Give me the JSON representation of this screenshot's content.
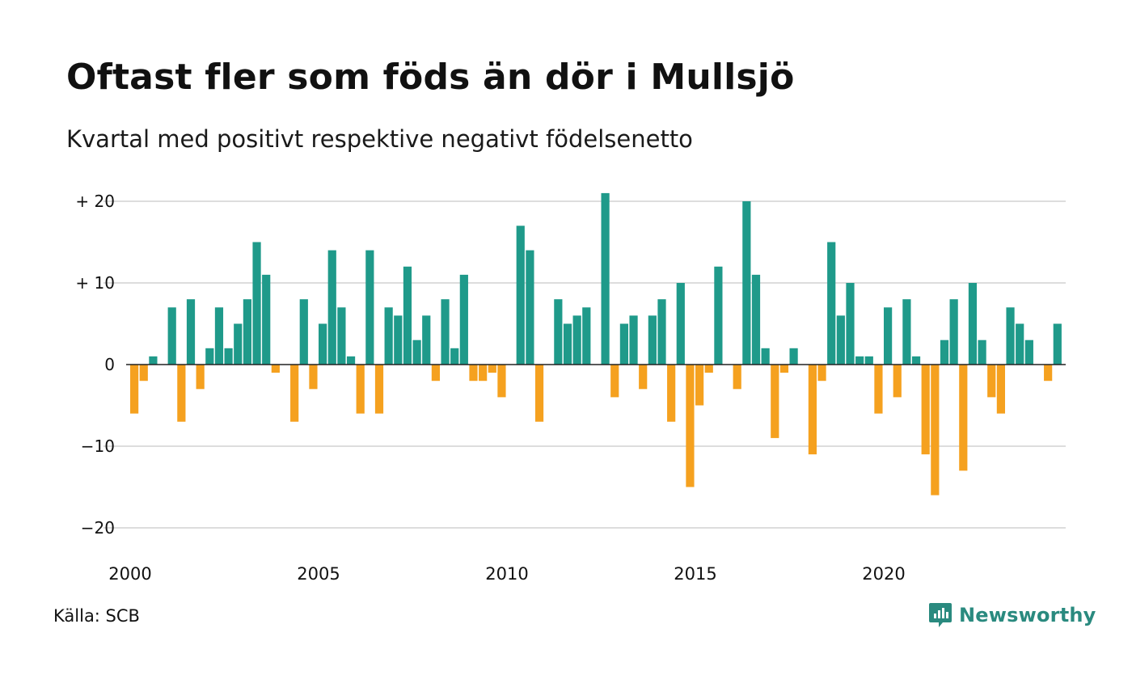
{
  "title": "Oftast fler som föds än dör i Mullsjö",
  "subtitle": "Kvartal med positivt respektive negativt födelsenetto",
  "source": "Källa: SCB",
  "brand": {
    "name": "Newsworthy",
    "icon": "newsworthy-logo-icon"
  },
  "colors": {
    "positive": "#1f9a8a",
    "negative": "#f5a11f",
    "grid": "#dddddd",
    "brand": "#2a8a7f"
  },
  "chart_data": {
    "type": "bar",
    "ylim": [
      -23,
      21
    ],
    "yticks": [
      {
        "value": 20,
        "label": "+ 20"
      },
      {
        "value": 10,
        "label": "+ 10"
      },
      {
        "value": 0,
        "label": "0"
      },
      {
        "value": -10,
        "label": "−10"
      },
      {
        "value": -20,
        "label": "−20"
      }
    ],
    "xticks": [
      "2000",
      "2005",
      "2010",
      "2015",
      "2020"
    ],
    "grid": true,
    "start": "2000 Q1",
    "values": [
      -6,
      -2,
      1,
      0,
      7,
      -7,
      8,
      -3,
      2,
      7,
      2,
      5,
      8,
      15,
      11,
      -1,
      0,
      -7,
      8,
      -3,
      5,
      14,
      7,
      1,
      -6,
      14,
      -6,
      7,
      6,
      12,
      3,
      6,
      -2,
      8,
      2,
      11,
      -2,
      -2,
      -1,
      -4,
      0,
      17,
      14,
      -7,
      0,
      8,
      5,
      6,
      7,
      0,
      21,
      -4,
      5,
      6,
      -3,
      6,
      8,
      -7,
      10,
      -15,
      -5,
      -1,
      12,
      0,
      -3,
      20,
      11,
      2,
      -9,
      -1,
      2,
      0,
      -11,
      -2,
      15,
      6,
      10,
      1,
      1,
      -6,
      7,
      -4,
      8,
      1,
      -11,
      -16,
      3,
      8,
      -13,
      10,
      3,
      -4,
      -6,
      7,
      5,
      3,
      0,
      -2,
      5
    ]
  }
}
